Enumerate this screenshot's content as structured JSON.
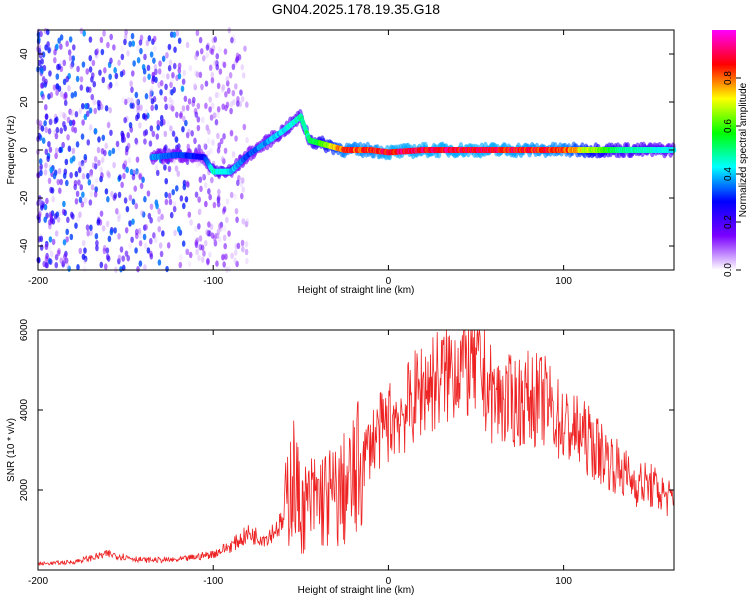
{
  "title": "GN04.2025.178.19.35.G18",
  "chart_data": [
    {
      "type": "heatmap",
      "xlabel": "Height of straight line (km)",
      "ylabel": "Frequency (Hz)",
      "xlim": [
        -200,
        163
      ],
      "ylim": [
        -50,
        50
      ],
      "xticks": [
        "-200",
        "-100",
        "0",
        "100"
      ],
      "yticks": [
        "40",
        "20",
        "0",
        "-20",
        "-40"
      ],
      "colorbar": {
        "label": "Normalized spectral amplitude",
        "range": [
          0,
          1
        ],
        "ticks": [
          "0.0",
          "0.2",
          "0.4",
          "0.6",
          "0.8"
        ],
        "colors": [
          "#ffffff",
          "#7a00ff",
          "#0000ff",
          "#00ffff",
          "#00ff00",
          "#ffff00",
          "#ff0000",
          "#ff00ff"
        ]
      },
      "ridge": [
        {
          "x": -135,
          "y": -3,
          "amp": 0.4
        },
        {
          "x": -120,
          "y": -2,
          "amp": 0.35
        },
        {
          "x": -105,
          "y": -3,
          "amp": 0.3
        },
        {
          "x": -100,
          "y": -9,
          "amp": 0.5
        },
        {
          "x": -90,
          "y": -9,
          "amp": 0.45
        },
        {
          "x": -80,
          "y": -2,
          "amp": 0.35
        },
        {
          "x": -70,
          "y": 3,
          "amp": 0.4
        },
        {
          "x": -60,
          "y": 8,
          "amp": 0.45
        },
        {
          "x": -50,
          "y": 14,
          "amp": 0.5
        },
        {
          "x": -45,
          "y": 4,
          "amp": 0.55
        },
        {
          "x": -35,
          "y": 2,
          "amp": 0.7
        },
        {
          "x": -25,
          "y": 0,
          "amp": 0.9
        },
        {
          "x": -10,
          "y": 0,
          "amp": 0.9
        },
        {
          "x": 0,
          "y": -1,
          "amp": 0.95
        },
        {
          "x": 20,
          "y": 0,
          "amp": 0.95
        },
        {
          "x": 60,
          "y": 0,
          "amp": 0.95
        },
        {
          "x": 100,
          "y": 0,
          "amp": 0.9
        },
        {
          "x": 130,
          "y": 0,
          "amp": 0.55
        },
        {
          "x": 163,
          "y": 0,
          "amp": 0.45
        }
      ],
      "noise_region_x": [
        -200,
        -95
      ]
    },
    {
      "type": "line",
      "xlabel": "Height of straight line (km)",
      "ylabel": "SNR (10 * v/v)",
      "xlim": [
        -200,
        163
      ],
      "ylim": [
        0,
        6000
      ],
      "xticks": [
        "-200",
        "-100",
        "0",
        "100"
      ],
      "yticks": [
        "6000",
        "4000",
        "2000"
      ],
      "series": [
        {
          "color": "#ee2222",
          "x": [
            -200,
            -180,
            -160,
            -140,
            -120,
            -100,
            -90,
            -80,
            -70,
            -60,
            -55,
            -50,
            -40,
            -30,
            -20,
            -10,
            0,
            10,
            20,
            30,
            40,
            50,
            60,
            70,
            80,
            90,
            100,
            110,
            120,
            130,
            140,
            150,
            163
          ],
          "y": [
            150,
            200,
            400,
            250,
            250,
            400,
            600,
            900,
            800,
            1200,
            2500,
            1500,
            1800,
            1800,
            2200,
            3200,
            3700,
            4000,
            4600,
            4800,
            5200,
            5100,
            4300,
            4200,
            4300,
            4200,
            3600,
            3400,
            3000,
            2600,
            2200,
            2100,
            1700
          ]
        }
      ]
    }
  ]
}
